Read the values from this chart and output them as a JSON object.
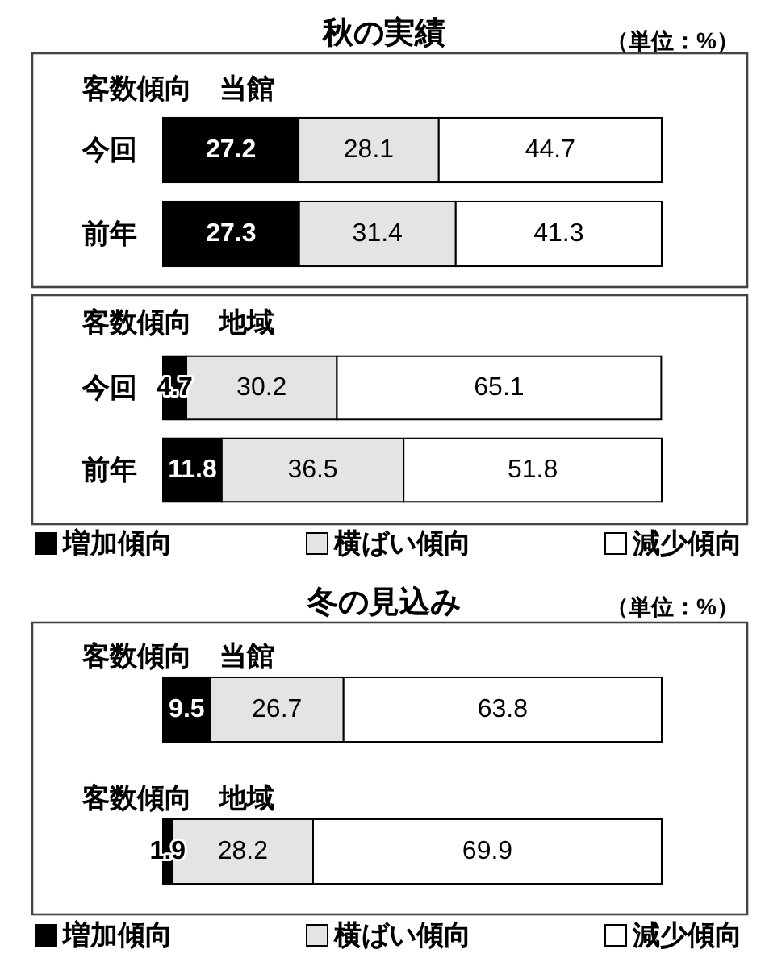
{
  "chart_data": [
    {
      "type": "bar",
      "orientation": "horizontal",
      "stacked": true,
      "title": "秋の実績",
      "subtitle": "客数傾向　当館",
      "annotations": [
        "（単位：%）"
      ],
      "categories": [
        "今回",
        "前年"
      ],
      "series": [
        {
          "color": "#000000",
          "values": [
            27.2,
            27.3
          ]
        },
        {
          "color": "#e4e4e4",
          "values": [
            28.1,
            31.4
          ]
        },
        {
          "color": "#ffffff",
          "values": [
            44.7,
            41.3
          ]
        }
      ],
      "data_labels": true,
      "tick_labels": "y"
    },
    {
      "type": "bar",
      "orientation": "horizontal",
      "stacked": true,
      "title": "客数傾向　地域",
      "categories": [
        "今回",
        "前年"
      ],
      "series": [
        {
          "name": "増加傾向",
          "color": "#000000",
          "values": [
            4.7,
            11.8
          ]
        },
        {
          "name": "横ばい傾向",
          "color": "#e4e4e4",
          "values": [
            30.2,
            36.5
          ]
        },
        {
          "name": "減少傾向",
          "color": "#ffffff",
          "values": [
            65.1,
            51.8
          ]
        }
      ],
      "data_labels": true,
      "tick_labels": "y",
      "legend": "bottom"
    },
    {
      "type": "bar",
      "orientation": "horizontal",
      "stacked": true,
      "title": "冬の見込み",
      "subtitle": "客数傾向　当館",
      "annotations": [
        "（単位：%）"
      ],
      "categories": [
        null
      ],
      "series": [
        {
          "color": "#000000",
          "values": [
            9.5
          ]
        },
        {
          "color": "#e4e4e4",
          "values": [
            26.7
          ]
        },
        {
          "color": "#ffffff",
          "values": [
            63.8
          ]
        }
      ],
      "data_labels": true
    },
    {
      "type": "bar",
      "orientation": "horizontal",
      "stacked": true,
      "title": "客数傾向　地域",
      "categories": [
        null
      ],
      "series": [
        {
          "name": "増加傾向",
          "color": "#000000",
          "values": [
            1.9
          ]
        },
        {
          "name": "横ばい傾向",
          "color": "#e4e4e4",
          "values": [
            28.2
          ]
        },
        {
          "name": "減少傾向",
          "color": "#ffffff",
          "values": [
            69.9
          ]
        }
      ],
      "data_labels": true,
      "legend": "bottom"
    }
  ]
}
